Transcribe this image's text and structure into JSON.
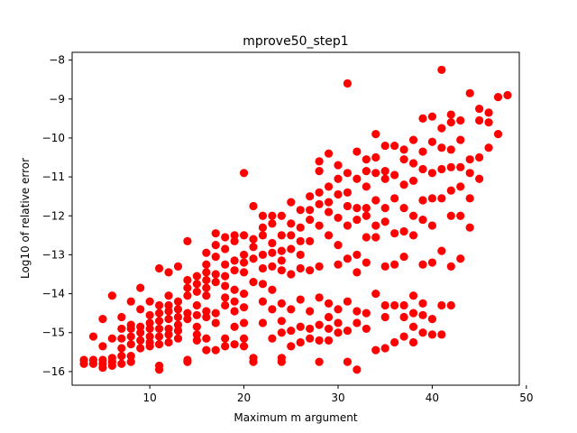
{
  "chart_data": {
    "type": "scatter",
    "title": "mprove50_step1",
    "xlabel": "Maximum m argument",
    "ylabel": "Log10 of relative error",
    "xlim": [
      1.75,
      49.25
    ],
    "ylim": [
      -16.35,
      -7.8
    ],
    "xticks": [
      10,
      20,
      30,
      40,
      50
    ],
    "yticks": [
      -16,
      -15,
      -14,
      -13,
      -12,
      -11,
      -10,
      -9,
      -8
    ],
    "grid": false,
    "legend": "none",
    "marker_color": "#ff0000",
    "points": [
      [
        3,
        -15.7
      ],
      [
        3,
        -15.8
      ],
      [
        4,
        -15.1
      ],
      [
        4,
        -15.7
      ],
      [
        4,
        -15.8
      ],
      [
        5,
        -14.65
      ],
      [
        5,
        -15.35
      ],
      [
        5,
        -15.7
      ],
      [
        5,
        -15.8
      ],
      [
        5,
        -15.9
      ],
      [
        6,
        -14.05
      ],
      [
        6,
        -15.15
      ],
      [
        6,
        -15.65
      ],
      [
        6,
        -15.75
      ],
      [
        6,
        -15.85
      ],
      [
        7,
        -14.6
      ],
      [
        7,
        -14.9
      ],
      [
        7,
        -15.15
      ],
      [
        7,
        -15.4
      ],
      [
        7,
        -15.6
      ],
      [
        7,
        -15.8
      ],
      [
        8,
        -14.2
      ],
      [
        8,
        -14.8
      ],
      [
        8,
        -14.9
      ],
      [
        8,
        -15.1
      ],
      [
        8,
        -15.3
      ],
      [
        8,
        -15.6
      ],
      [
        8,
        -15.75
      ],
      [
        9,
        -13.85
      ],
      [
        9,
        -14.4
      ],
      [
        9,
        -14.85
      ],
      [
        9,
        -15.0
      ],
      [
        9,
        -15.2
      ],
      [
        9,
        -15.4
      ],
      [
        10,
        -14.2
      ],
      [
        10,
        -14.55
      ],
      [
        10,
        -14.75
      ],
      [
        10,
        -14.9
      ],
      [
        10,
        -15.1
      ],
      [
        10,
        -15.25
      ],
      [
        10,
        -15.35
      ],
      [
        11,
        -13.35
      ],
      [
        11,
        -14.3
      ],
      [
        11,
        -14.5
      ],
      [
        11,
        -14.7
      ],
      [
        11,
        -14.9
      ],
      [
        11,
        -15.1
      ],
      [
        11,
        -15.3
      ],
      [
        11,
        -15.85
      ],
      [
        11,
        -15.95
      ],
      [
        12,
        -13.45
      ],
      [
        12,
        -14.05
      ],
      [
        12,
        -14.3
      ],
      [
        12,
        -14.45
      ],
      [
        12,
        -14.65
      ],
      [
        12,
        -14.9
      ],
      [
        12,
        -15.05
      ],
      [
        12,
        -15.25
      ],
      [
        13,
        -13.3
      ],
      [
        13,
        -14.2
      ],
      [
        13,
        -14.4
      ],
      [
        13,
        -14.6
      ],
      [
        13,
        -14.8
      ],
      [
        13,
        -14.95
      ],
      [
        13,
        -15.15
      ],
      [
        14,
        -12.65
      ],
      [
        14,
        -13.65
      ],
      [
        14,
        -13.85
      ],
      [
        14,
        -14.05
      ],
      [
        14,
        -14.5
      ],
      [
        14,
        -14.65
      ],
      [
        14,
        -15.7
      ],
      [
        14,
        -15.75
      ],
      [
        15,
        -13.55
      ],
      [
        15,
        -13.75
      ],
      [
        15,
        -13.95
      ],
      [
        15,
        -14.3
      ],
      [
        15,
        -14.55
      ],
      [
        15,
        -14.85
      ],
      [
        15,
        -15.05
      ],
      [
        15,
        -15.2
      ],
      [
        16,
        -12.95
      ],
      [
        16,
        -13.25
      ],
      [
        16,
        -13.45
      ],
      [
        16,
        -13.65
      ],
      [
        16,
        -13.85
      ],
      [
        16,
        -14.05
      ],
      [
        16,
        -14.45
      ],
      [
        16,
        -14.6
      ],
      [
        16,
        -15.15
      ],
      [
        16,
        -15.45
      ],
      [
        17,
        -12.45
      ],
      [
        17,
        -12.75
      ],
      [
        17,
        -13.05
      ],
      [
        17,
        -13.5
      ],
      [
        17,
        -13.7
      ],
      [
        17,
        -14.5
      ],
      [
        17,
        -14.75
      ],
      [
        17,
        -15.45
      ],
      [
        18,
        -12.55
      ],
      [
        18,
        -12.85
      ],
      [
        18,
        -13.25
      ],
      [
        18,
        -13.55
      ],
      [
        18,
        -13.8
      ],
      [
        18,
        -14.1
      ],
      [
        18,
        -14.3
      ],
      [
        18,
        -15.15
      ],
      [
        18,
        -15.35
      ],
      [
        19,
        -12.5
      ],
      [
        19,
        -12.65
      ],
      [
        19,
        -13.15
      ],
      [
        19,
        -13.4
      ],
      [
        19,
        -13.9
      ],
      [
        19,
        -14.2
      ],
      [
        19,
        -14.45
      ],
      [
        19,
        -14.85
      ],
      [
        19,
        -15.3
      ],
      [
        20,
        -10.9
      ],
      [
        20,
        -12.5
      ],
      [
        20,
        -13.0
      ],
      [
        20,
        -13.2
      ],
      [
        20,
        -13.45
      ],
      [
        20,
        -14.0
      ],
      [
        20,
        -14.35
      ],
      [
        20,
        -14.75
      ],
      [
        20,
        -15.15
      ],
      [
        20,
        -15.35
      ],
      [
        21,
        -11.75
      ],
      [
        21,
        -12.6
      ],
      [
        21,
        -12.8
      ],
      [
        21,
        -13.1
      ],
      [
        21,
        -13.7
      ],
      [
        21,
        -15.65
      ],
      [
        21,
        -15.75
      ],
      [
        22,
        -12.0
      ],
      [
        22,
        -12.3
      ],
      [
        22,
        -12.5
      ],
      [
        22,
        -13.0
      ],
      [
        22,
        -13.35
      ],
      [
        22,
        -13.75
      ],
      [
        22,
        -14.2
      ],
      [
        22,
        -14.75
      ],
      [
        23,
        -12.0
      ],
      [
        23,
        -12.2
      ],
      [
        23,
        -12.7
      ],
      [
        23,
        -12.95
      ],
      [
        23,
        -13.3
      ],
      [
        23,
        -13.9
      ],
      [
        23,
        -14.4
      ],
      [
        23,
        -15.15
      ],
      [
        24,
        -12.0
      ],
      [
        24,
        -12.5
      ],
      [
        24,
        -12.9
      ],
      [
        24,
        -13.15
      ],
      [
        24,
        -13.4
      ],
      [
        24,
        -14.25
      ],
      [
        24,
        -14.7
      ],
      [
        24,
        -15.0
      ],
      [
        24,
        -15.65
      ],
      [
        24,
        -15.75
      ],
      [
        25,
        -11.65
      ],
      [
        25,
        -12.2
      ],
      [
        25,
        -12.5
      ],
      [
        25,
        -12.85
      ],
      [
        25,
        -13.5
      ],
      [
        25,
        -14.4
      ],
      [
        25,
        -14.95
      ],
      [
        25,
        -15.35
      ],
      [
        26,
        -11.85
      ],
      [
        26,
        -12.3
      ],
      [
        26,
        -12.65
      ],
      [
        26,
        -13.0
      ],
      [
        26,
        -13.35
      ],
      [
        26,
        -14.15
      ],
      [
        26,
        -14.85
      ],
      [
        26,
        -15.25
      ],
      [
        27,
        -11.5
      ],
      [
        27,
        -11.85
      ],
      [
        27,
        -12.1
      ],
      [
        27,
        -12.65
      ],
      [
        27,
        -13.4
      ],
      [
        27,
        -14.45
      ],
      [
        27,
        -14.9
      ],
      [
        27,
        -15.15
      ],
      [
        28,
        -10.6
      ],
      [
        28,
        -10.85
      ],
      [
        28,
        -11.4
      ],
      [
        28,
        -11.7
      ],
      [
        28,
        -12.25
      ],
      [
        28,
        -13.3
      ],
      [
        28,
        -14.1
      ],
      [
        28,
        -14.8
      ],
      [
        28,
        -15.2
      ],
      [
        28,
        -15.75
      ],
      [
        29,
        -10.4
      ],
      [
        29,
        -11.25
      ],
      [
        29,
        -11.65
      ],
      [
        29,
        -11.9
      ],
      [
        29,
        -12.5
      ],
      [
        29,
        -14.25
      ],
      [
        29,
        -14.6
      ],
      [
        29,
        -14.9
      ],
      [
        29,
        -15.2
      ],
      [
        30,
        -10.7
      ],
      [
        30,
        -11.05
      ],
      [
        30,
        -11.45
      ],
      [
        30,
        -12.05
      ],
      [
        30,
        -12.75
      ],
      [
        30,
        -13.25
      ],
      [
        30,
        -14.4
      ],
      [
        30,
        -14.75
      ],
      [
        30,
        -15.0
      ],
      [
        31,
        -8.6
      ],
      [
        31,
        -10.9
      ],
      [
        31,
        -11.4
      ],
      [
        31,
        -11.75
      ],
      [
        31,
        -12.25
      ],
      [
        31,
        -13.1
      ],
      [
        31,
        -14.2
      ],
      [
        31,
        -14.95
      ],
      [
        31,
        -15.75
      ],
      [
        32,
        -10.35
      ],
      [
        32,
        -11.05
      ],
      [
        32,
        -11.8
      ],
      [
        32,
        -12.1
      ],
      [
        32,
        -13.0
      ],
      [
        32,
        -13.45
      ],
      [
        32,
        -14.45
      ],
      [
        32,
        -14.75
      ],
      [
        32,
        -15.95
      ],
      [
        33,
        -10.55
      ],
      [
        33,
        -10.85
      ],
      [
        33,
        -11.25
      ],
      [
        33,
        -11.8
      ],
      [
        33,
        -12.0
      ],
      [
        33,
        -12.55
      ],
      [
        33,
        -13.2
      ],
      [
        33,
        -14.5
      ],
      [
        33,
        -14.9
      ],
      [
        34,
        -9.9
      ],
      [
        34,
        -10.5
      ],
      [
        34,
        -10.9
      ],
      [
        34,
        -11.6
      ],
      [
        34,
        -12.25
      ],
      [
        34,
        -12.55
      ],
      [
        34,
        -14.0
      ],
      [
        34,
        -15.45
      ],
      [
        35,
        -10.2
      ],
      [
        35,
        -10.85
      ],
      [
        35,
        -11.05
      ],
      [
        35,
        -11.8
      ],
      [
        35,
        -12.15
      ],
      [
        35,
        -13.3
      ],
      [
        35,
        -14.3
      ],
      [
        35,
        -14.6
      ],
      [
        35,
        -15.4
      ],
      [
        36,
        -10.2
      ],
      [
        36,
        -10.95
      ],
      [
        36,
        -11.55
      ],
      [
        36,
        -12.45
      ],
      [
        36,
        -13.25
      ],
      [
        36,
        -14.3
      ],
      [
        36,
        -15.25
      ],
      [
        37,
        -10.3
      ],
      [
        37,
        -10.55
      ],
      [
        37,
        -11.2
      ],
      [
        37,
        -11.8
      ],
      [
        37,
        -12.4
      ],
      [
        37,
        -13.05
      ],
      [
        37,
        -14.3
      ],
      [
        37,
        -14.6
      ],
      [
        37,
        -15.1
      ],
      [
        38,
        -10.05
      ],
      [
        38,
        -10.65
      ],
      [
        38,
        -11.1
      ],
      [
        38,
        -12.0
      ],
      [
        38,
        -12.5
      ],
      [
        38,
        -14.05
      ],
      [
        38,
        -14.5
      ],
      [
        38,
        -14.85
      ],
      [
        38,
        -15.25
      ],
      [
        39,
        -9.5
      ],
      [
        39,
        -10.35
      ],
      [
        39,
        -10.8
      ],
      [
        39,
        -11.6
      ],
      [
        39,
        -12.1
      ],
      [
        39,
        -13.25
      ],
      [
        39,
        -14.25
      ],
      [
        39,
        -14.55
      ],
      [
        39,
        -15.0
      ],
      [
        40,
        -9.45
      ],
      [
        40,
        -10.1
      ],
      [
        40,
        -10.9
      ],
      [
        40,
        -11.55
      ],
      [
        40,
        -12.25
      ],
      [
        40,
        -13.2
      ],
      [
        40,
        -14.65
      ],
      [
        40,
        -15.05
      ],
      [
        41,
        -8.25
      ],
      [
        41,
        -9.75
      ],
      [
        41,
        -10.25
      ],
      [
        41,
        -10.8
      ],
      [
        41,
        -11.55
      ],
      [
        41,
        -12.9
      ],
      [
        41,
        -14.3
      ],
      [
        41,
        -15.05
      ],
      [
        42,
        -9.4
      ],
      [
        42,
        -9.6
      ],
      [
        42,
        -10.3
      ],
      [
        42,
        -10.75
      ],
      [
        42,
        -11.35
      ],
      [
        42,
        -12.0
      ],
      [
        42,
        -13.3
      ],
      [
        42,
        -14.3
      ],
      [
        43,
        -9.55
      ],
      [
        43,
        -10.05
      ],
      [
        43,
        -10.75
      ],
      [
        43,
        -11.25
      ],
      [
        43,
        -12.0
      ],
      [
        43,
        -13.1
      ],
      [
        44,
        -8.85
      ],
      [
        44,
        -10.55
      ],
      [
        44,
        -10.9
      ],
      [
        44,
        -11.55
      ],
      [
        44,
        -12.3
      ],
      [
        45,
        -9.25
      ],
      [
        45,
        -9.55
      ],
      [
        45,
        -10.5
      ],
      [
        45,
        -11.05
      ],
      [
        46,
        -9.35
      ],
      [
        46,
        -9.6
      ],
      [
        46,
        -10.25
      ],
      [
        47,
        -8.95
      ],
      [
        47,
        -9.9
      ],
      [
        48,
        -8.9
      ]
    ]
  }
}
